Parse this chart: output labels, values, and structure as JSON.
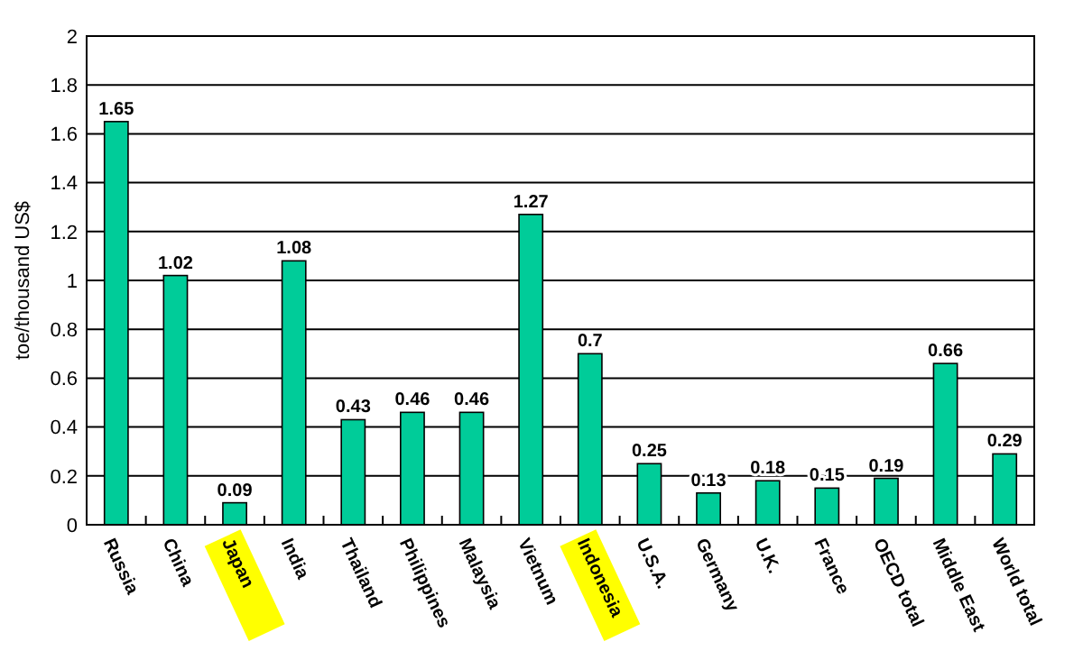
{
  "chart_data": {
    "type": "bar",
    "ylabel": "toe/thousand US$",
    "categories": [
      "Russia",
      "China",
      "Japan",
      "India",
      "Thailand",
      "Philippines",
      "Malaysia",
      "Vietnum",
      "Indonesia",
      "U.S.A.",
      "Germany",
      "U.K.",
      "France",
      "OECD total",
      "Middle East",
      "World total"
    ],
    "values": [
      1.65,
      1.02,
      0.09,
      1.08,
      0.43,
      0.46,
      0.46,
      1.27,
      0.7,
      0.25,
      0.13,
      0.18,
      0.15,
      0.19,
      0.66,
      0.29
    ],
    "color": "#00cc99",
    "ylim": [
      0,
      2
    ],
    "yticks": [
      0,
      0.2,
      0.4,
      0.6,
      0.8,
      1,
      1.2,
      1.4,
      1.6,
      1.8,
      2
    ],
    "grid": "y",
    "data_labels": true
  }
}
